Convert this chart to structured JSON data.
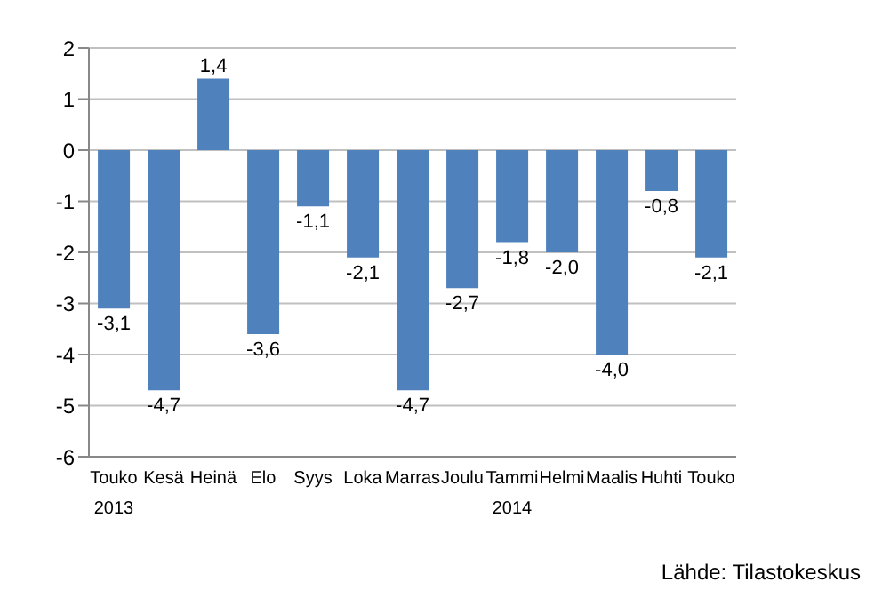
{
  "chart_data": {
    "type": "bar",
    "categories": [
      "Touko",
      "Kesä",
      "Heinä",
      "Elo",
      "Syys",
      "Loka",
      "Marras",
      "Joulu",
      "Tammi",
      "Helmi",
      "Maalis",
      "Huhti",
      "Touko"
    ],
    "values": [
      -3.1,
      -4.7,
      1.4,
      -3.6,
      -1.1,
      -2.1,
      -4.7,
      -2.7,
      -1.8,
      -2.0,
      -4.0,
      -0.8,
      -2.1
    ],
    "color": "#4f81bd",
    "ylim": [
      -6,
      2
    ],
    "yticks": [
      -6,
      -5,
      -4,
      -3,
      -2,
      -1,
      0,
      1,
      2
    ],
    "grid": "y",
    "value_labels": [
      "-3,1",
      "-4,7",
      "1,4",
      "-3,6",
      "-1,1",
      "-2,1",
      "-4,7",
      "-2,7",
      "-1,8",
      "-2,0",
      "-4,0",
      "-0,8",
      "-2,1"
    ],
    "annotations": [
      "2013",
      "2014",
      "Lähde: Tilastokeskus"
    ]
  }
}
